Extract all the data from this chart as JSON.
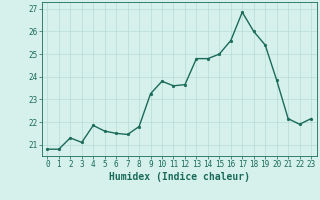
{
  "x": [
    0,
    1,
    2,
    3,
    4,
    5,
    6,
    7,
    8,
    9,
    10,
    11,
    12,
    13,
    14,
    15,
    16,
    17,
    18,
    19,
    20,
    21,
    22,
    23
  ],
  "y": [
    20.8,
    20.8,
    21.3,
    21.1,
    21.85,
    21.6,
    21.5,
    21.45,
    21.8,
    23.25,
    23.8,
    23.6,
    23.65,
    24.8,
    24.8,
    25.0,
    25.6,
    26.85,
    26.0,
    25.4,
    23.85,
    22.15,
    21.9,
    22.15
  ],
  "line_color": "#1a6b5a",
  "marker": "o",
  "marker_size": 2.0,
  "linewidth": 1.0,
  "bg_color": "#d6f0ec",
  "grid_color": "#b8ddd6",
  "xlabel": "Humidex (Indice chaleur)",
  "ylim": [
    20.5,
    27.3
  ],
  "xlim": [
    -0.5,
    23.5
  ],
  "yticks": [
    21,
    22,
    23,
    24,
    25,
    26,
    27
  ],
  "xticks": [
    0,
    1,
    2,
    3,
    4,
    5,
    6,
    7,
    8,
    9,
    10,
    11,
    12,
    13,
    14,
    15,
    16,
    17,
    18,
    19,
    20,
    21,
    22,
    23
  ],
  "tick_label_fontsize": 5.5,
  "xlabel_fontsize": 7.0,
  "text_color": "#1a6b5a"
}
